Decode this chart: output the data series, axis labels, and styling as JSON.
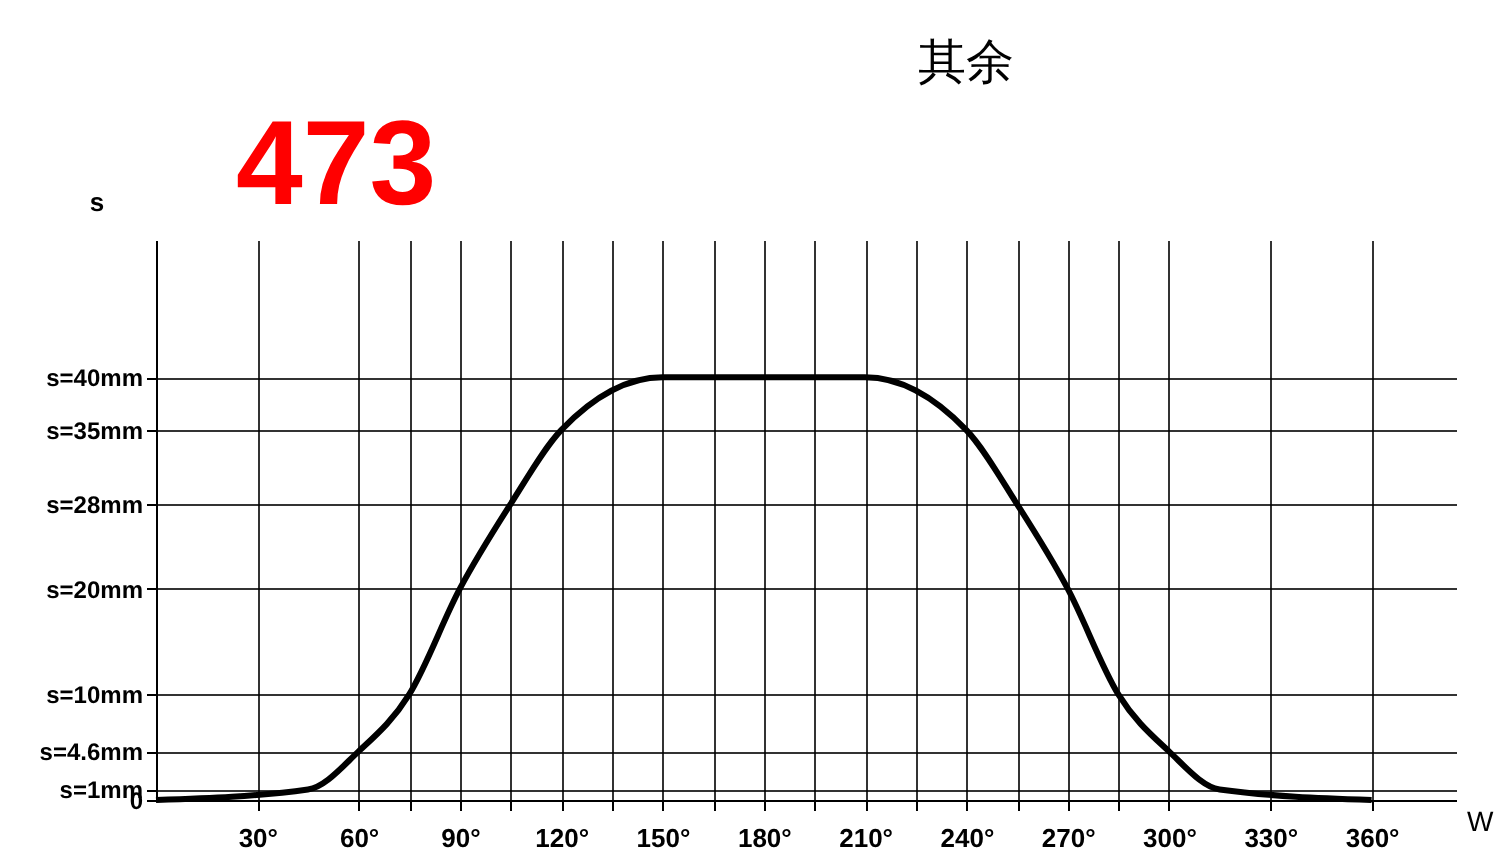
{
  "chart_data": {
    "type": "line",
    "title": "其余",
    "xlabel": "W",
    "ylabel": "s",
    "x": [
      0,
      45,
      60,
      75,
      90,
      105,
      120,
      150,
      210,
      240,
      255,
      270,
      285,
      300,
      315,
      360
    ],
    "series": [
      {
        "color": "#000000",
        "values": [
          0,
          1,
          4.6,
          10,
          20,
          28,
          35,
          40,
          40,
          35,
          28,
          20,
          10,
          4.6,
          1,
          0
        ]
      }
    ],
    "xlim": [
      0,
      385
    ],
    "ylim": [
      0,
      53
    ],
    "xticks": [
      {
        "value": 30,
        "label": "30°"
      },
      {
        "value": 60,
        "label": "60°"
      },
      {
        "value": 75,
        "label": null
      },
      {
        "value": 90,
        "label": "90°"
      },
      {
        "value": 105,
        "label": null
      },
      {
        "value": 120,
        "label": "120°"
      },
      {
        "value": 135,
        "label": null
      },
      {
        "value": 150,
        "label": "150°"
      },
      {
        "value": 165,
        "label": null
      },
      {
        "value": 180,
        "label": "180°"
      },
      {
        "value": 195,
        "label": null
      },
      {
        "value": 210,
        "label": "210°"
      },
      {
        "value": 225,
        "label": null
      },
      {
        "value": 240,
        "label": "240°"
      },
      {
        "value": 255,
        "label": null
      },
      {
        "value": 270,
        "label": "270°"
      },
      {
        "value": 285,
        "label": null
      },
      {
        "value": 300,
        "label": "300°"
      },
      {
        "value": 330,
        "label": "330°"
      },
      {
        "value": 360,
        "label": "360°"
      }
    ],
    "yticks": [
      0,
      {
        "value": 1,
        "label": "s=1mm"
      },
      {
        "value": 4.6,
        "label": "s=4.6mm"
      },
      {
        "value": 10,
        "label": "s=10mm"
      },
      {
        "value": 20,
        "label": "s=20mm"
      },
      {
        "value": 28,
        "label": "s=28mm"
      },
      {
        "value": 35,
        "label": "s=35mm"
      },
      {
        "value": 40,
        "label": "s=40mm"
      }
    ],
    "grid": true,
    "marker": "none",
    "line_style": "solid",
    "annotations": [
      "473"
    ]
  }
}
